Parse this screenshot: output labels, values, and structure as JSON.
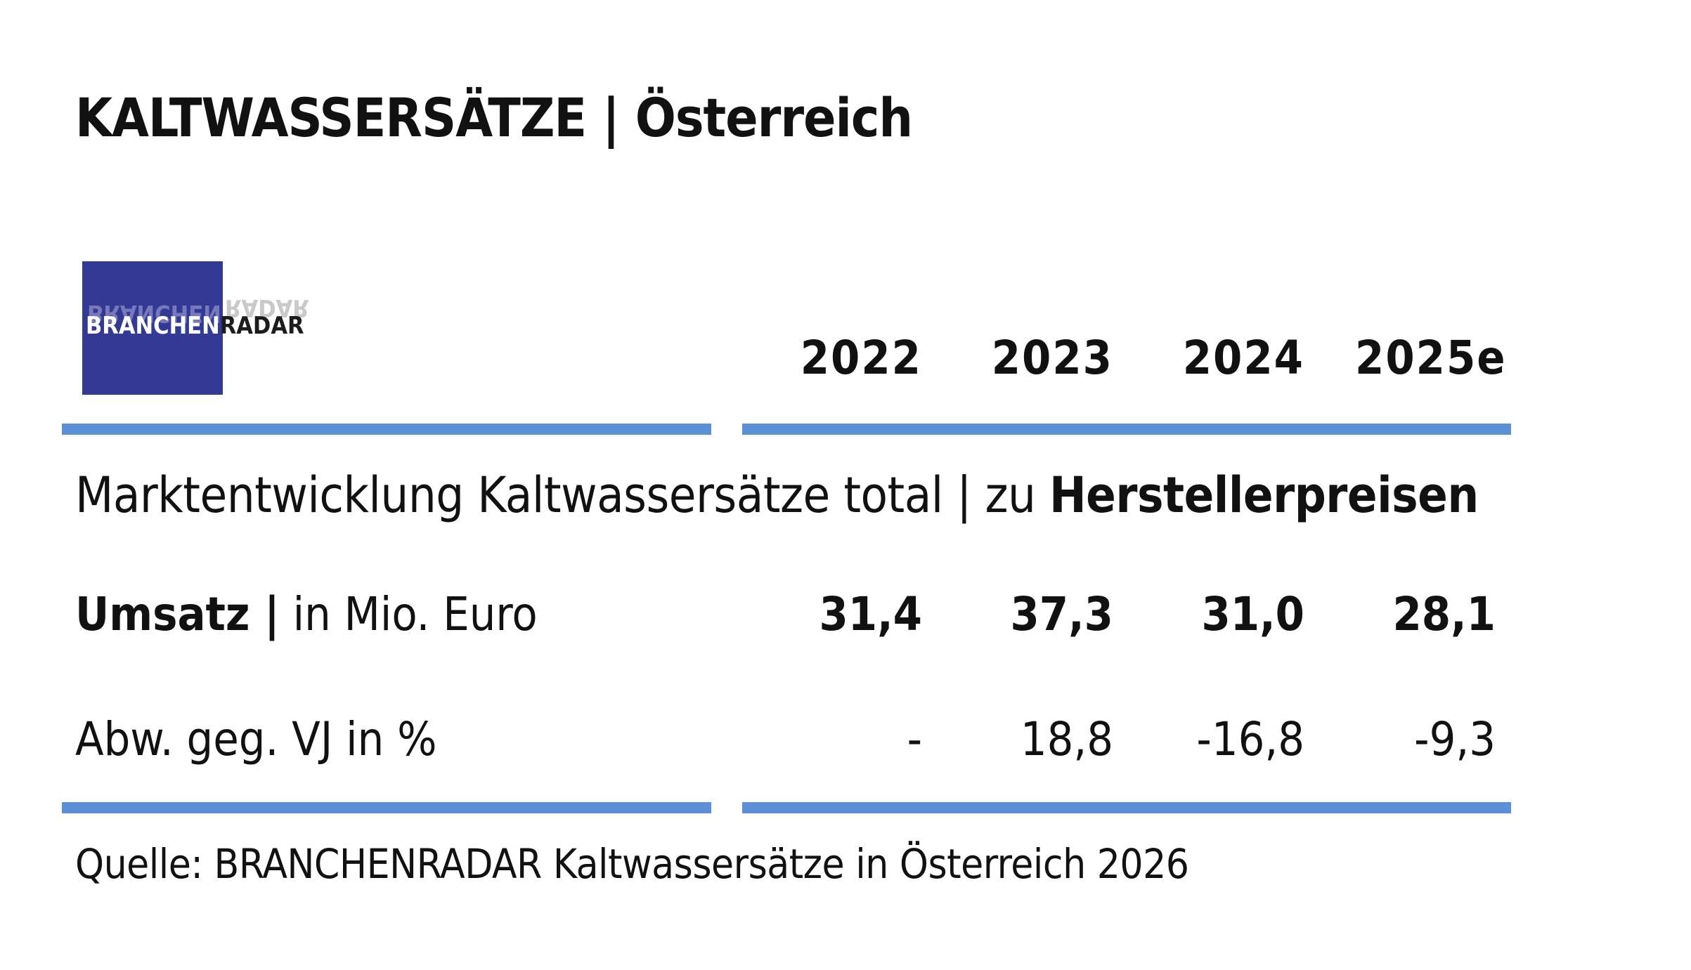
{
  "title": "KALTWASSERSÄTZE | Österreich",
  "logo": {
    "text_left": "BRANCHEN",
    "text_right": "RADAR",
    "bg_color": "#333a96"
  },
  "section_title": {
    "normal": "Marktentwicklung Kaltwassersätze total | zu ",
    "bold": "Herstellerpreisen"
  },
  "rule_color": "#5b8fd6",
  "chart_data": {
    "type": "table",
    "columns": [
      "2022",
      "2023",
      "2024",
      "2025e"
    ],
    "rows": [
      {
        "label_bold": "Umsatz |",
        "label_normal": " in Mio. Euro",
        "values": [
          "31,4",
          "37,3",
          "31,0",
          "28,1"
        ]
      },
      {
        "label_bold": "",
        "label_normal": "Abw. geg. VJ in %",
        "values": [
          "-",
          "18,8",
          "-16,8",
          "-9,3"
        ]
      }
    ]
  },
  "source": "Quelle: BRANCHENRADAR Kaltwassersätze in Österreich 2026"
}
